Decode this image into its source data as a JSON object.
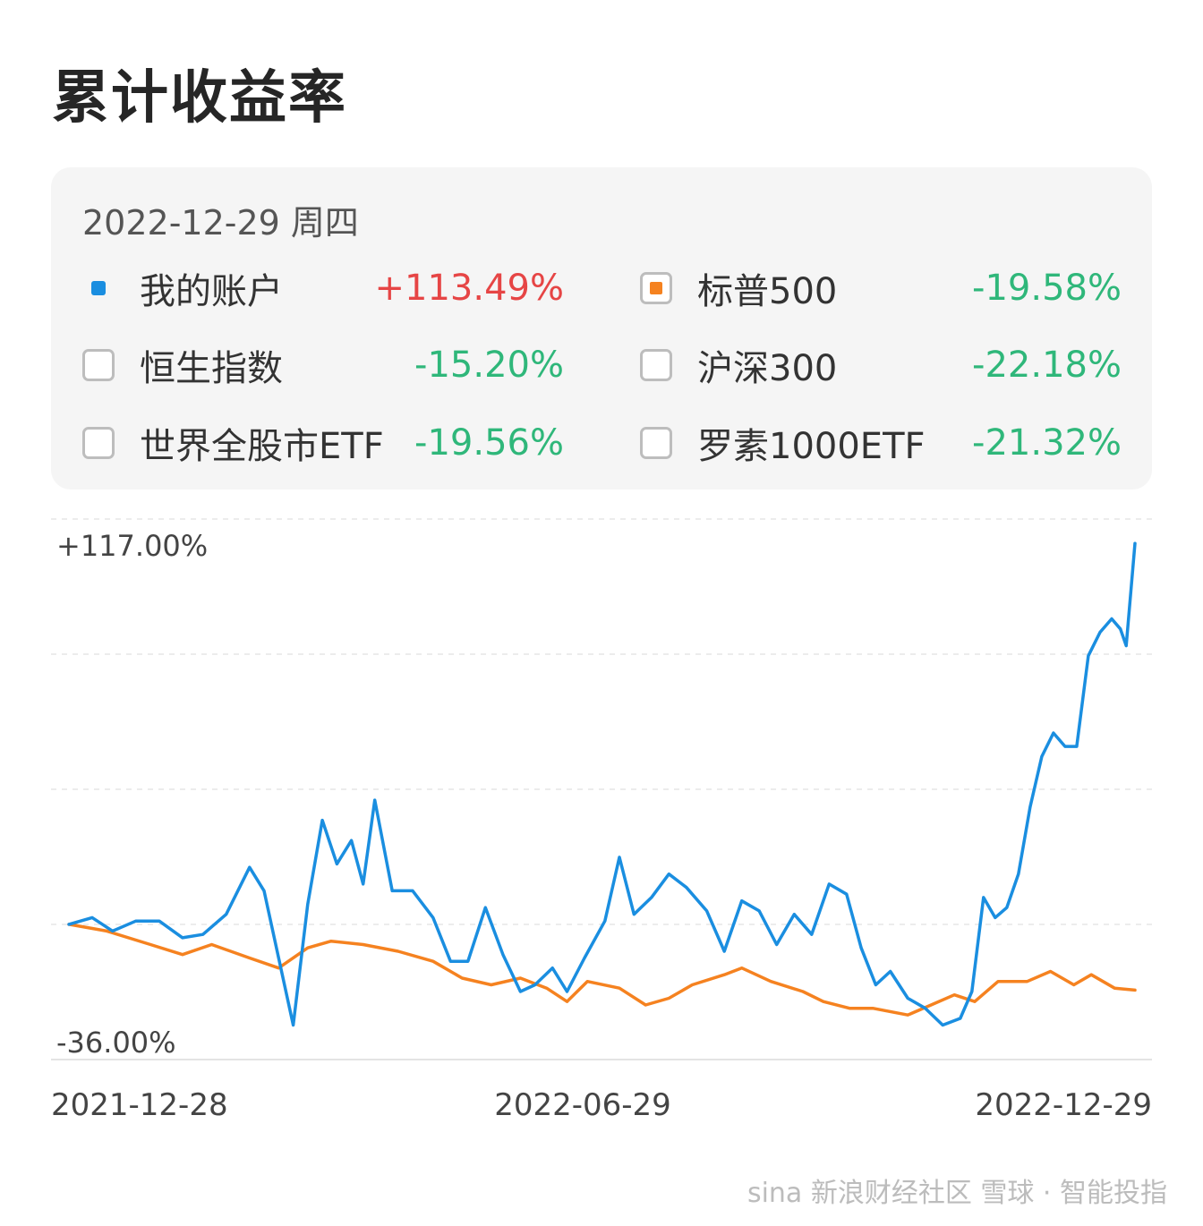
{
  "title": "累计收益率",
  "panel": {
    "date": "2022-12-29 周四",
    "items": [
      {
        "label": "我的账户",
        "value": "+113.49%",
        "sign": "pos",
        "marker": "dot",
        "color": "#1a8ee0"
      },
      {
        "label": "标普500",
        "value": "-19.58%",
        "sign": "neg",
        "marker": "checked",
        "color": "#f58220"
      },
      {
        "label": "恒生指数",
        "value": "-15.20%",
        "sign": "neg",
        "marker": "unchecked"
      },
      {
        "label": "沪深300",
        "value": "-22.18%",
        "sign": "neg",
        "marker": "unchecked"
      },
      {
        "label": "世界全股市ETF",
        "value": "-19.56%",
        "sign": "neg",
        "marker": "unchecked"
      },
      {
        "label": "罗素1000ETF",
        "value": "-21.32%",
        "sign": "neg",
        "marker": "unchecked"
      }
    ]
  },
  "chart_data": {
    "type": "line",
    "ymax_label": "+117.00%",
    "ymin_label": "-36.00%",
    "ylim": [
      -36,
      117
    ],
    "xlim": [
      "2021-12-28",
      "2022-12-29"
    ],
    "x_ticks": [
      "2021-12-28",
      "2022-06-29",
      "2022-12-29"
    ],
    "grid": true,
    "series": [
      {
        "name": "我的账户",
        "color": "#1a8ee0",
        "points": [
          [
            "2021-12-28",
            0
          ],
          [
            "2022-01-05",
            2
          ],
          [
            "2022-01-12",
            -2
          ],
          [
            "2022-01-20",
            1
          ],
          [
            "2022-01-28",
            1
          ],
          [
            "2022-02-05",
            -4
          ],
          [
            "2022-02-12",
            -3
          ],
          [
            "2022-02-20",
            3
          ],
          [
            "2022-02-28",
            17
          ],
          [
            "2022-03-05",
            10
          ],
          [
            "2022-03-10",
            -10
          ],
          [
            "2022-03-15",
            -30
          ],
          [
            "2022-03-20",
            6
          ],
          [
            "2022-03-25",
            31
          ],
          [
            "2022-03-30",
            18
          ],
          [
            "2022-04-04",
            25
          ],
          [
            "2022-04-08",
            12
          ],
          [
            "2022-04-12",
            37
          ],
          [
            "2022-04-18",
            10
          ],
          [
            "2022-04-25",
            10
          ],
          [
            "2022-05-02",
            2
          ],
          [
            "2022-05-08",
            -11
          ],
          [
            "2022-05-14",
            -11
          ],
          [
            "2022-05-20",
            5
          ],
          [
            "2022-05-26",
            -9
          ],
          [
            "2022-06-01",
            -20
          ],
          [
            "2022-06-06",
            -18
          ],
          [
            "2022-06-12",
            -13
          ],
          [
            "2022-06-17",
            -20
          ],
          [
            "2022-06-23",
            -10
          ],
          [
            "2022-06-30",
            1
          ],
          [
            "2022-07-05",
            20
          ],
          [
            "2022-07-10",
            3
          ],
          [
            "2022-07-16",
            8
          ],
          [
            "2022-07-22",
            15
          ],
          [
            "2022-07-28",
            11
          ],
          [
            "2022-08-04",
            4
          ],
          [
            "2022-08-10",
            -8
          ],
          [
            "2022-08-16",
            7
          ],
          [
            "2022-08-22",
            4
          ],
          [
            "2022-08-28",
            -6
          ],
          [
            "2022-09-03",
            3
          ],
          [
            "2022-09-09",
            -3
          ],
          [
            "2022-09-15",
            12
          ],
          [
            "2022-09-21",
            9
          ],
          [
            "2022-09-26",
            -7
          ],
          [
            "2022-10-01",
            -18
          ],
          [
            "2022-10-06",
            -14
          ],
          [
            "2022-10-12",
            -22
          ],
          [
            "2022-10-18",
            -25
          ],
          [
            "2022-10-24",
            -30
          ],
          [
            "2022-10-30",
            -28
          ],
          [
            "2022-11-03",
            -20
          ],
          [
            "2022-11-07",
            8
          ],
          [
            "2022-11-11",
            2
          ],
          [
            "2022-11-15",
            5
          ],
          [
            "2022-11-19",
            15
          ],
          [
            "2022-11-23",
            35
          ],
          [
            "2022-11-27",
            50
          ],
          [
            "2022-12-01",
            57
          ],
          [
            "2022-12-05",
            53
          ],
          [
            "2022-12-09",
            53
          ],
          [
            "2022-12-13",
            80
          ],
          [
            "2022-12-17",
            87
          ],
          [
            "2022-12-21",
            91
          ],
          [
            "2022-12-24",
            88
          ],
          [
            "2022-12-26",
            83
          ],
          [
            "2022-12-29",
            113.49
          ]
        ]
      },
      {
        "name": "标普500",
        "color": "#f58220",
        "points": [
          [
            "2021-12-28",
            0
          ],
          [
            "2022-01-10",
            -2
          ],
          [
            "2022-01-25",
            -6
          ],
          [
            "2022-02-05",
            -9
          ],
          [
            "2022-02-15",
            -6
          ],
          [
            "2022-02-28",
            -10
          ],
          [
            "2022-03-10",
            -13
          ],
          [
            "2022-03-20",
            -7
          ],
          [
            "2022-03-28",
            -5
          ],
          [
            "2022-04-08",
            -6
          ],
          [
            "2022-04-20",
            -8
          ],
          [
            "2022-05-02",
            -11
          ],
          [
            "2022-05-12",
            -16
          ],
          [
            "2022-05-22",
            -18
          ],
          [
            "2022-06-01",
            -16
          ],
          [
            "2022-06-10",
            -19
          ],
          [
            "2022-06-17",
            -23
          ],
          [
            "2022-06-24",
            -17
          ],
          [
            "2022-07-05",
            -19
          ],
          [
            "2022-07-14",
            -24
          ],
          [
            "2022-07-22",
            -22
          ],
          [
            "2022-07-30",
            -18
          ],
          [
            "2022-08-10",
            -15
          ],
          [
            "2022-08-16",
            -13
          ],
          [
            "2022-08-26",
            -17
          ],
          [
            "2022-09-06",
            -20
          ],
          [
            "2022-09-13",
            -23
          ],
          [
            "2022-09-22",
            -25
          ],
          [
            "2022-09-30",
            -25
          ],
          [
            "2022-10-12",
            -27
          ],
          [
            "2022-10-20",
            -24
          ],
          [
            "2022-10-28",
            -21
          ],
          [
            "2022-11-04",
            -23
          ],
          [
            "2022-11-12",
            -17
          ],
          [
            "2022-11-22",
            -17
          ],
          [
            "2022-11-30",
            -14
          ],
          [
            "2022-12-08",
            -18
          ],
          [
            "2022-12-14",
            -15
          ],
          [
            "2022-12-22",
            -19
          ],
          [
            "2022-12-29",
            -19.58
          ]
        ]
      }
    ]
  },
  "watermark": "sina 新浪财经社区 雪球 · 智能投指"
}
